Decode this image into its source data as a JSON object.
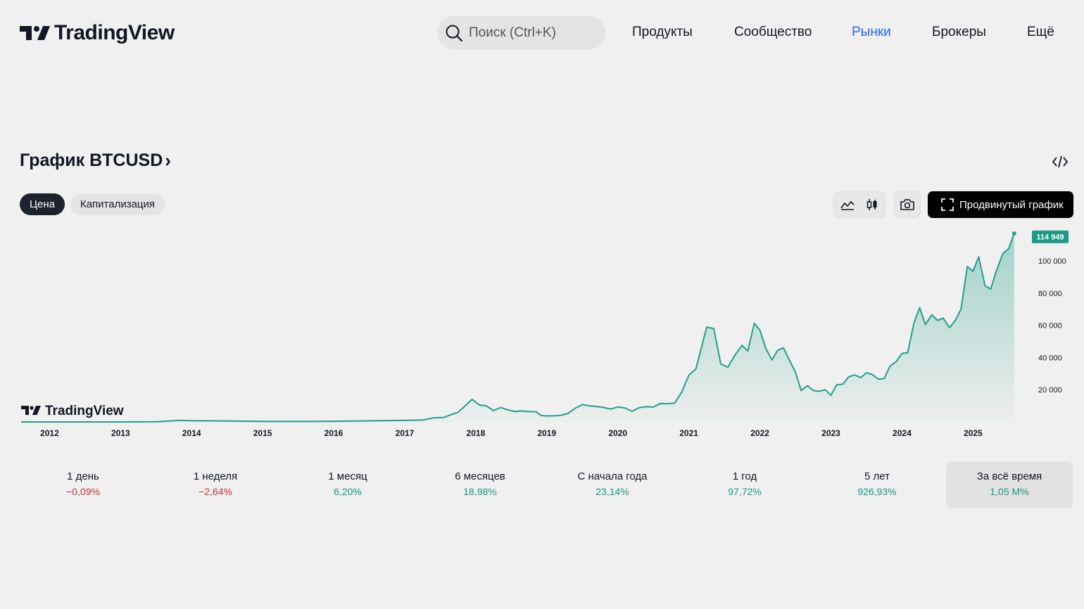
{
  "header": {
    "logo_text": "TradingView",
    "search_placeholder": "Поиск (Ctrl+K)",
    "nav": [
      {
        "label": "Продукты"
      },
      {
        "label": "Сообщество"
      },
      {
        "label": "Рынки",
        "active": true
      },
      {
        "label": "Брокеры"
      },
      {
        "label": "Ещё"
      }
    ]
  },
  "chart_section": {
    "title": "График BTCUSD",
    "tabs": [
      {
        "label": "Цена",
        "active": true
      },
      {
        "label": "Капитализация"
      }
    ],
    "advanced_button": "Продвинутый график",
    "watermark": "TradingView",
    "icons": {
      "embed": "code-embed-icon",
      "chart_type_line": "area-chart-icon",
      "chart_type_candles": "candles-icon",
      "snapshot": "camera-icon",
      "fullscreen": "fullscreen-icon",
      "search": "search-icon"
    }
  },
  "chart_data": {
    "type": "area",
    "title": "",
    "x_tick_labels": [
      "2012",
      "2013",
      "2014",
      "2015",
      "2016",
      "2017",
      "2018",
      "2019",
      "2020",
      "2021",
      "2022",
      "2023",
      "2024",
      "2025"
    ],
    "y_tick_labels": [
      "20 000",
      "40 000",
      "60 000",
      "80 000",
      "100 000"
    ],
    "y_ticks": [
      20000,
      40000,
      60000,
      80000,
      100000
    ],
    "ylim": [
      0,
      117000
    ],
    "xlim": [
      2011.6,
      2025.75
    ],
    "last_price_label": "114 949",
    "last_price": 114949,
    "series": [
      {
        "x": [
          2011.6,
          2012.0,
          2012.5,
          2013.0,
          2013.5,
          2013.85,
          2014.0,
          2014.5,
          2015.0,
          2015.5,
          2016.0,
          2016.5,
          2017.0,
          2017.25,
          2017.4,
          2017.55,
          2017.65,
          2017.75,
          2017.85,
          2017.95,
          2018.05,
          2018.15,
          2018.25,
          2018.35,
          2018.45,
          2018.55,
          2018.65,
          2018.75,
          2018.85,
          2018.92,
          2019.0,
          2019.1,
          2019.2,
          2019.3,
          2019.4,
          2019.5,
          2019.6,
          2019.7,
          2019.8,
          2019.9,
          2020.0,
          2020.1,
          2020.2,
          2020.3,
          2020.4,
          2020.5,
          2020.6,
          2020.7,
          2020.8,
          2020.9,
          2021.0,
          2021.1,
          2021.17,
          2021.25,
          2021.35,
          2021.45,
          2021.55,
          2021.65,
          2021.75,
          2021.83,
          2021.92,
          2022.0,
          2022.08,
          2022.17,
          2022.25,
          2022.33,
          2022.42,
          2022.5,
          2022.58,
          2022.67,
          2022.75,
          2022.83,
          2022.92,
          2023.0,
          2023.08,
          2023.17,
          2023.25,
          2023.33,
          2023.42,
          2023.5,
          2023.58,
          2023.67,
          2023.75,
          2023.83,
          2023.92,
          2024.0,
          2024.08,
          2024.17,
          2024.25,
          2024.33,
          2024.42,
          2024.5,
          2024.58,
          2024.67,
          2024.75,
          2024.83,
          2024.92,
          2025.0,
          2025.08,
          2025.17,
          2025.25,
          2025.33,
          2025.42,
          2025.5,
          2025.58
        ],
        "values": [
          5,
          10,
          10,
          15,
          100,
          1000,
          800,
          600,
          300,
          250,
          400,
          650,
          1000,
          1200,
          2500,
          2800,
          4500,
          6000,
          10000,
          14000,
          10500,
          10000,
          7000,
          9000,
          7500,
          6500,
          6800,
          6400,
          6300,
          4000,
          3700,
          3800,
          4100,
          5300,
          8500,
          10800,
          10000,
          9600,
          9000,
          8000,
          9300,
          8700,
          6600,
          8800,
          9500,
          9200,
          11500,
          11300,
          11700,
          18500,
          29000,
          33000,
          45000,
          58900,
          58000,
          36000,
          34000,
          41500,
          47500,
          44000,
          61200,
          57000,
          46000,
          38500,
          44500,
          46000,
          38000,
          31000,
          19500,
          22500,
          19500,
          19000,
          20000,
          16500,
          23000,
          23500,
          28000,
          29200,
          27500,
          30500,
          29500,
          26500,
          27000,
          34500,
          37500,
          42500,
          43000,
          61500,
          71000,
          60500,
          66500,
          63000,
          64500,
          58500,
          63000,
          70000,
          96500,
          93500,
          102500,
          84500,
          82500,
          94000,
          104500,
          107500,
          117000
        ]
      }
    ]
  },
  "performance": [
    {
      "label": "1 день",
      "value": "−0,09%",
      "direction": "down"
    },
    {
      "label": "1 неделя",
      "value": "−2,64%",
      "direction": "down"
    },
    {
      "label": "1 месяц",
      "value": "6,20%",
      "direction": "up"
    },
    {
      "label": "6 месяцев",
      "value": "18,98%",
      "direction": "up"
    },
    {
      "label": "С начала года",
      "value": "23,14%",
      "direction": "up"
    },
    {
      "label": "1 год",
      "value": "97,72%",
      "direction": "up"
    },
    {
      "label": "5 лет",
      "value": "926,93%",
      "direction": "up"
    },
    {
      "label": "За всё время",
      "value": "1,05 M%",
      "direction": "up",
      "selected": true
    }
  ],
  "colors": {
    "accent": "#2962ff",
    "line": "#22a08a",
    "up": "#159981",
    "down": "#c4303d",
    "price_tag": "#1b9a84",
    "text": "#131722"
  }
}
